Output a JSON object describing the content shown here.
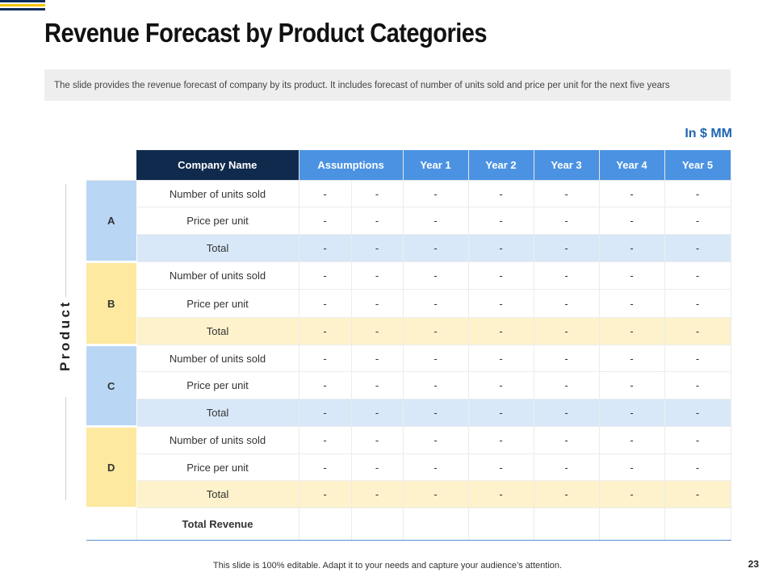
{
  "slide": {
    "title": "Revenue Forecast by Product Categories",
    "description": "The slide provides the revenue forecast of company by its product. It includes forecast of number of units sold and price per unit for the next five years",
    "unit_label": "In $ MM",
    "axis_label": "Product",
    "footer": "This slide is 100% editable. Adapt it to your needs and capture your audience’s attention.",
    "page_number": "23",
    "colors": {
      "navy": "#0f2a4d",
      "header_blue": "#4b93e2",
      "accent_blue": "#1f65b0",
      "light_blue": "#b9d7f4",
      "light_yellow": "#fde9a0"
    }
  },
  "table": {
    "headers": [
      "Company Name",
      "Assumptions",
      "Year 1",
      "Year 2",
      "Year 3",
      "Year 4",
      "Year 5"
    ],
    "groups": [
      {
        "letter": "A",
        "rows": [
          {
            "label": "Number of units sold",
            "cells": [
              "-",
              "-",
              "-",
              "-",
              "-",
              "-",
              "-"
            ]
          },
          {
            "label": "Price per unit",
            "cells": [
              "-",
              "-",
              "-",
              "-",
              "-",
              "-",
              "-"
            ]
          },
          {
            "label": "Total",
            "cells": [
              "-",
              "-",
              "-",
              "-",
              "-",
              "-",
              "-"
            ]
          }
        ]
      },
      {
        "letter": "B",
        "rows": [
          {
            "label": "Number of units sold",
            "cells": [
              "-",
              "-",
              "-",
              "-",
              "-",
              "-",
              "-"
            ]
          },
          {
            "label": "Price per unit",
            "cells": [
              "-",
              "-",
              "-",
              "-",
              "-",
              "-",
              "-"
            ]
          },
          {
            "label": "Total",
            "cells": [
              "-",
              "-",
              "-",
              "-",
              "-",
              "-",
              "-"
            ]
          }
        ]
      },
      {
        "letter": "C",
        "rows": [
          {
            "label": "Number of units sold",
            "cells": [
              "-",
              "-",
              "-",
              "-",
              "-",
              "-",
              "-"
            ]
          },
          {
            "label": "Price per unit",
            "cells": [
              "-",
              "-",
              "-",
              "-",
              "-",
              "-",
              "-"
            ]
          },
          {
            "label": "Total",
            "cells": [
              "-",
              "-",
              "-",
              "-",
              "-",
              "-",
              "-"
            ]
          }
        ]
      },
      {
        "letter": "D",
        "rows": [
          {
            "label": "Number of units sold",
            "cells": [
              "-",
              "-",
              "-",
              "-",
              "-",
              "-",
              "-"
            ]
          },
          {
            "label": "Price per unit",
            "cells": [
              "-",
              "-",
              "-",
              "-",
              "-",
              "-",
              "-"
            ]
          },
          {
            "label": "Total",
            "cells": [
              "-",
              "-",
              "-",
              "-",
              "-",
              "-",
              "-"
            ]
          }
        ]
      }
    ],
    "total_revenue_label": "Total Revenue"
  }
}
